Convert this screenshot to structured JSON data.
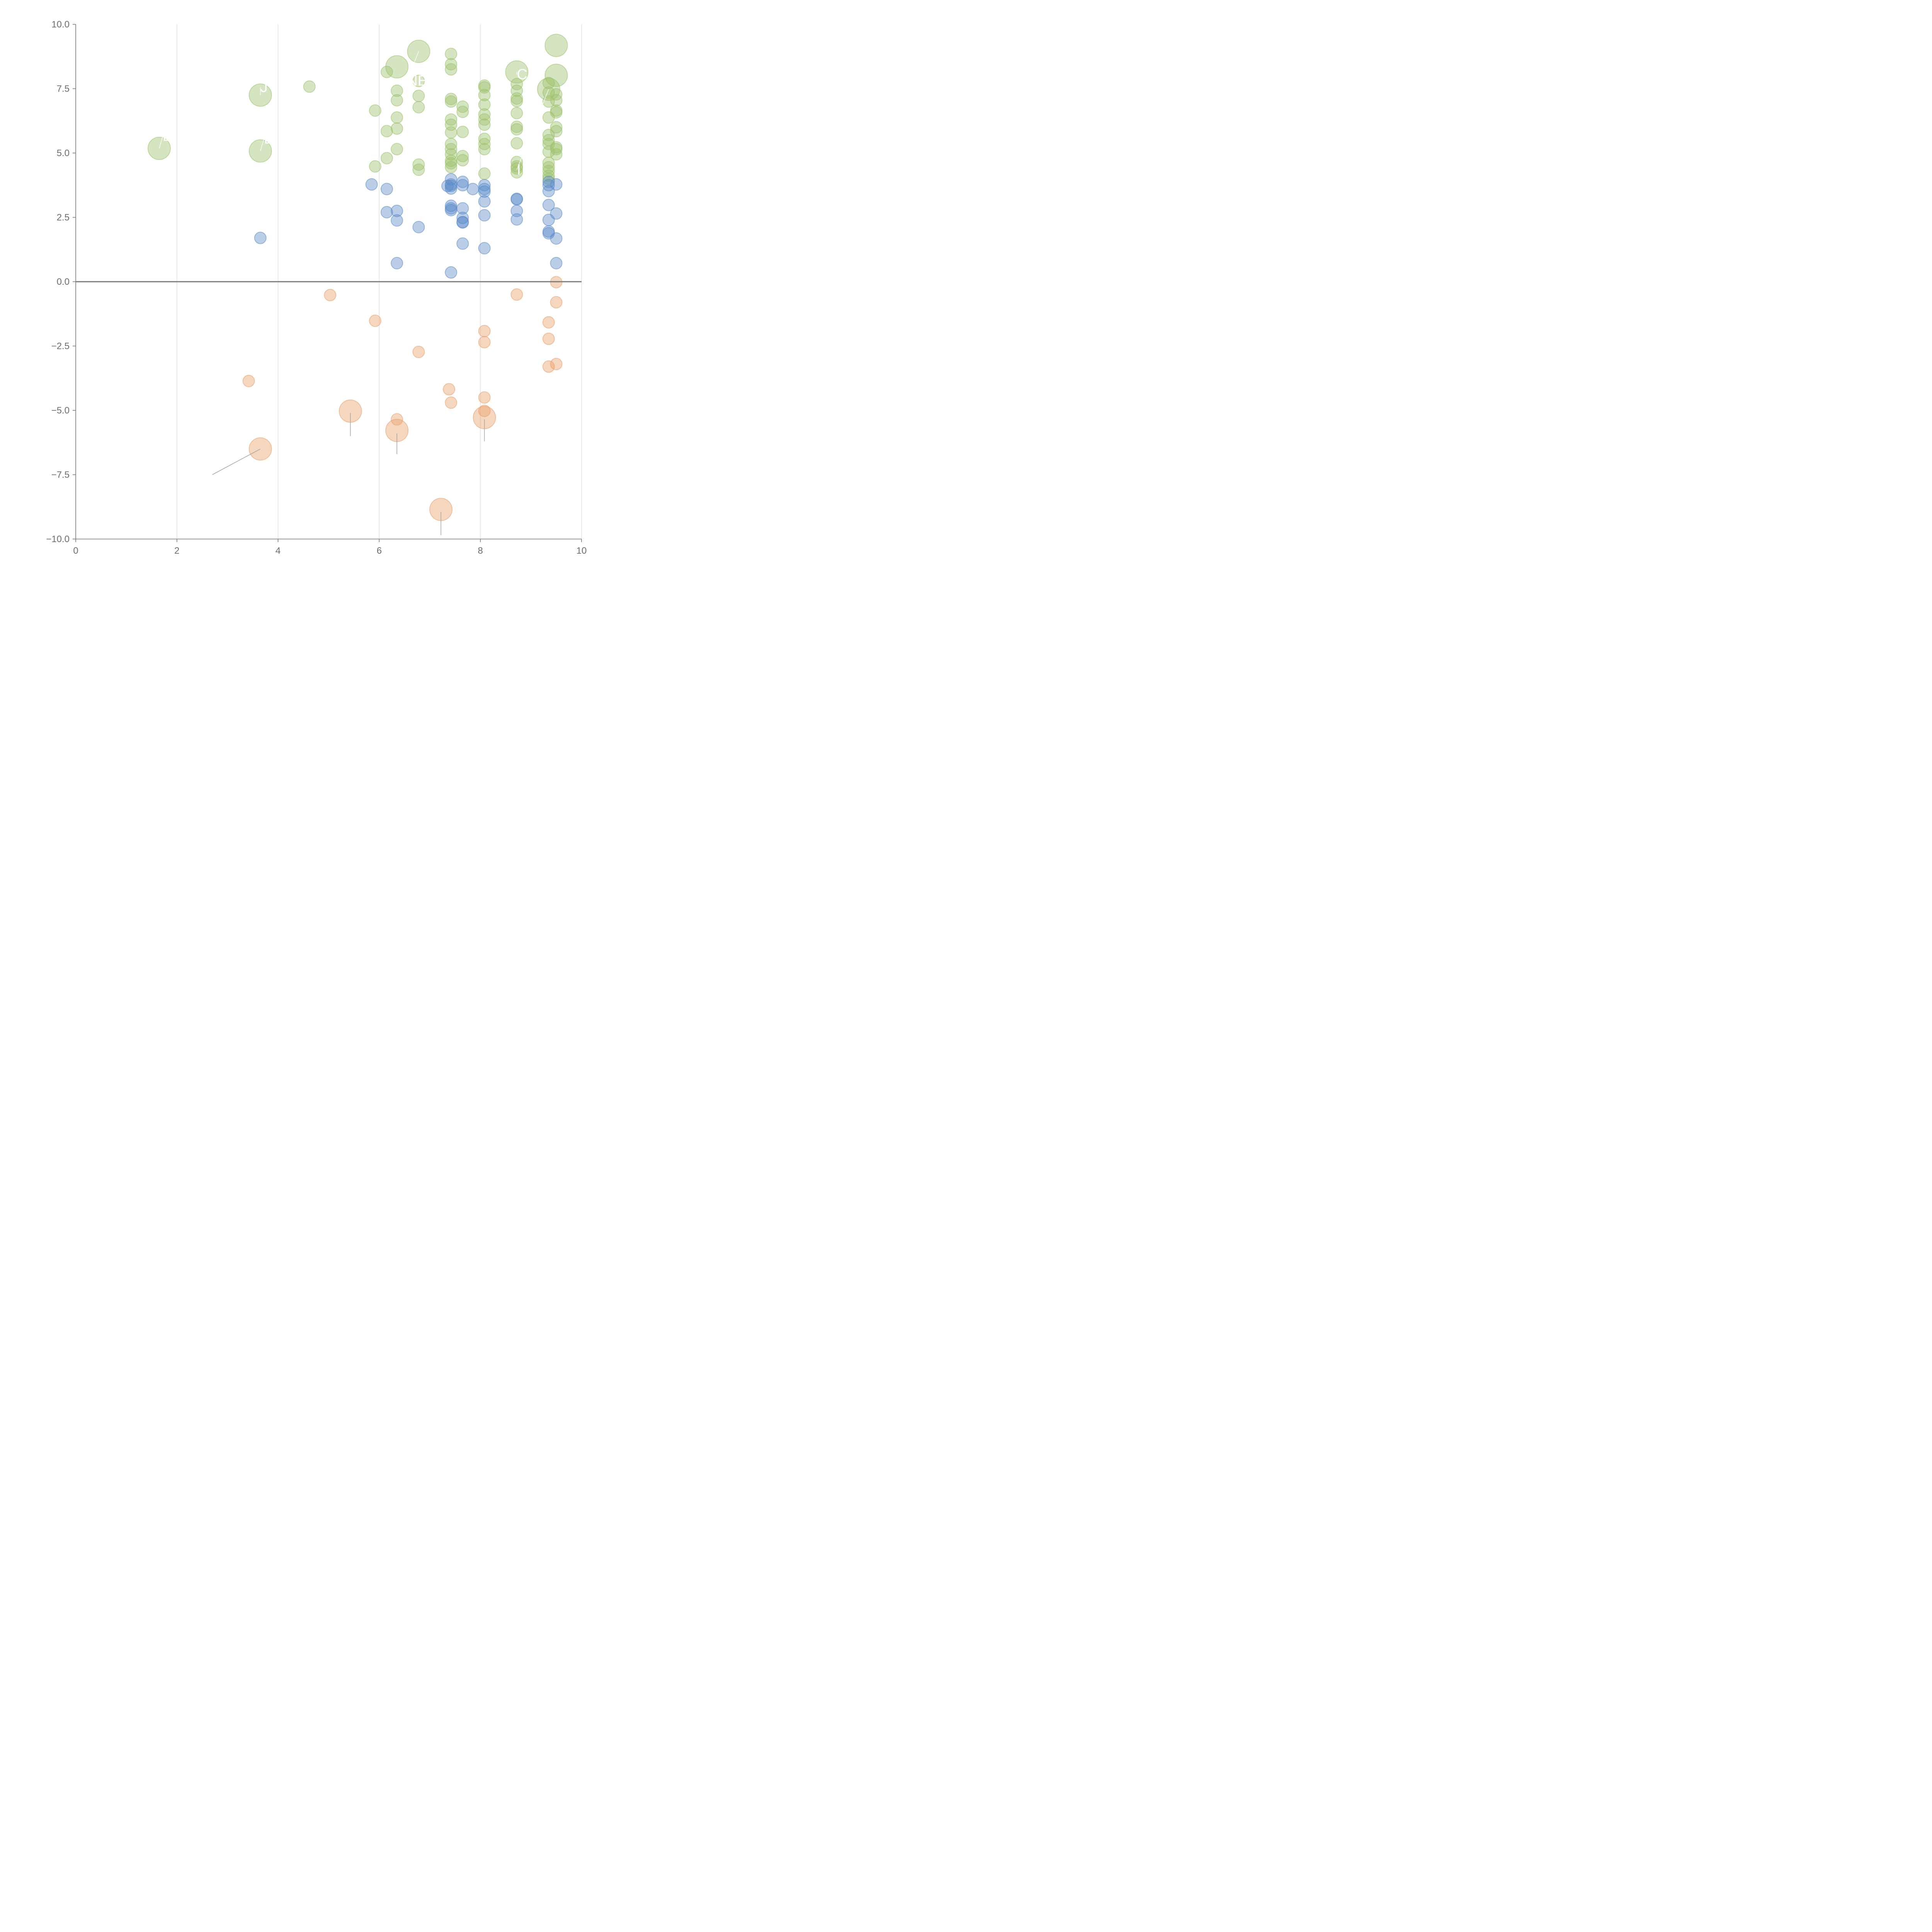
{
  "chart_data": {
    "type": "scatter",
    "title": "",
    "xlabel": "",
    "ylabel": "",
    "xlim": [
      0,
      10
    ],
    "ylim": [
      -10,
      10
    ],
    "x_ticks": [
      0,
      2,
      4,
      6,
      8,
      10
    ],
    "y_ticks": [
      10,
      7.5,
      5,
      2.5,
      0,
      -2.5,
      -5,
      -7.5,
      -10
    ],
    "x_tick_labels": [
      "0",
      "2",
      "4",
      "6",
      "8",
      "10"
    ],
    "y_tick_labels": [
      "10.0",
      "7.5",
      "5.0",
      "2.5",
      "0.0",
      "−2.5",
      "−5.0",
      "−7.5",
      "−10.0"
    ],
    "grid": "vertical gridlines at x ticks",
    "zero_line": true,
    "series": [
      {
        "name": "green",
        "color": "#9dc16b",
        "points": [
          [
            3.65,
            7.25,
            2
          ],
          [
            4.62,
            7.58,
            1
          ],
          [
            1.65,
            5.18,
            2
          ],
          [
            3.65,
            5.08,
            2
          ],
          [
            6.35,
            8.35,
            2
          ],
          [
            6.78,
            8.95,
            2
          ],
          [
            6.15,
            8.15,
            1
          ],
          [
            6.35,
            7.42,
            1
          ],
          [
            6.35,
            7.05,
            1
          ],
          [
            5.92,
            6.65,
            1
          ],
          [
            6.35,
            6.38,
            1
          ],
          [
            6.15,
            5.85,
            1
          ],
          [
            6.35,
            5.95,
            1
          ],
          [
            6.35,
            5.15,
            1
          ],
          [
            6.15,
            4.8,
            1
          ],
          [
            5.92,
            4.48,
            1
          ],
          [
            6.78,
            7.8,
            1
          ],
          [
            6.78,
            7.22,
            1
          ],
          [
            6.78,
            6.78,
            1
          ],
          [
            6.78,
            4.55,
            1
          ],
          [
            6.78,
            4.35,
            1
          ],
          [
            7.42,
            8.85,
            1
          ],
          [
            7.42,
            8.45,
            1
          ],
          [
            7.42,
            8.25,
            1
          ],
          [
            7.42,
            7.1,
            1
          ],
          [
            7.42,
            7.0,
            1
          ],
          [
            7.42,
            6.3,
            1
          ],
          [
            7.42,
            6.1,
            1
          ],
          [
            7.42,
            5.8,
            1
          ],
          [
            7.42,
            5.35,
            1
          ],
          [
            7.42,
            5.15,
            1
          ],
          [
            7.42,
            4.95,
            1
          ],
          [
            7.42,
            4.7,
            1
          ],
          [
            7.42,
            4.6,
            1
          ],
          [
            7.42,
            4.45,
            1
          ],
          [
            7.65,
            6.8,
            1
          ],
          [
            7.65,
            6.6,
            1
          ],
          [
            7.65,
            5.82,
            1
          ],
          [
            7.65,
            4.88,
            1
          ],
          [
            7.65,
            4.72,
            1
          ],
          [
            8.08,
            7.62,
            1
          ],
          [
            8.08,
            7.55,
            1
          ],
          [
            8.08,
            7.25,
            1
          ],
          [
            8.08,
            6.88,
            1
          ],
          [
            8.08,
            6.5,
            1
          ],
          [
            8.08,
            6.3,
            1
          ],
          [
            8.08,
            6.1,
            1
          ],
          [
            8.08,
            5.55,
            1
          ],
          [
            8.08,
            5.35,
            1
          ],
          [
            8.08,
            5.15,
            1
          ],
          [
            8.08,
            4.2,
            1
          ],
          [
            8.72,
            8.15,
            2
          ],
          [
            8.72,
            7.68,
            1
          ],
          [
            8.72,
            7.42,
            1
          ],
          [
            8.72,
            7.12,
            1
          ],
          [
            8.72,
            7.02,
            1
          ],
          [
            8.72,
            6.55,
            1
          ],
          [
            8.72,
            6.02,
            1
          ],
          [
            8.72,
            5.92,
            1
          ],
          [
            8.72,
            5.38,
            1
          ],
          [
            8.72,
            4.65,
            1
          ],
          [
            8.72,
            4.48,
            1
          ],
          [
            8.72,
            4.4,
            1
          ],
          [
            8.72,
            4.25,
            1
          ],
          [
            9.5,
            9.18,
            2
          ],
          [
            9.5,
            8.02,
            2
          ],
          [
            9.35,
            7.48,
            2
          ],
          [
            9.35,
            7.72,
            1
          ],
          [
            9.35,
            7.35,
            1
          ],
          [
            9.35,
            7.0,
            1
          ],
          [
            9.35,
            6.38,
            1
          ],
          [
            9.35,
            5.7,
            1
          ],
          [
            9.35,
            5.5,
            1
          ],
          [
            9.35,
            5.35,
            1
          ],
          [
            9.35,
            5.05,
            1
          ],
          [
            9.35,
            4.62,
            1
          ],
          [
            9.35,
            4.45,
            1
          ],
          [
            9.35,
            4.3,
            1
          ],
          [
            9.35,
            4.12,
            1
          ],
          [
            9.35,
            4.0,
            1
          ],
          [
            9.5,
            7.28,
            1
          ],
          [
            9.5,
            7.05,
            1
          ],
          [
            9.5,
            6.65,
            1
          ],
          [
            9.5,
            6.58,
            1
          ],
          [
            9.5,
            6.0,
            1
          ],
          [
            9.5,
            5.85,
            1
          ],
          [
            9.5,
            5.22,
            1
          ],
          [
            9.5,
            5.15,
            1
          ],
          [
            9.5,
            4.95,
            1
          ]
        ]
      },
      {
        "name": "blue",
        "color": "#5b8ac7",
        "points": [
          [
            3.65,
            1.7,
            1
          ],
          [
            5.85,
            3.78,
            1
          ],
          [
            6.15,
            3.6,
            1
          ],
          [
            6.15,
            2.7,
            1
          ],
          [
            6.35,
            2.75,
            1
          ],
          [
            6.35,
            2.38,
            1
          ],
          [
            6.78,
            2.12,
            1
          ],
          [
            6.35,
            0.72,
            1
          ],
          [
            7.35,
            3.72,
            1
          ],
          [
            7.42,
            3.98,
            1
          ],
          [
            7.42,
            3.78,
            1
          ],
          [
            7.42,
            3.72,
            1
          ],
          [
            7.42,
            3.62,
            1
          ],
          [
            7.42,
            2.95,
            1
          ],
          [
            7.42,
            2.85,
            1
          ],
          [
            7.42,
            2.78,
            1
          ],
          [
            7.42,
            0.36,
            1
          ],
          [
            7.65,
            3.88,
            1
          ],
          [
            7.65,
            3.75,
            1
          ],
          [
            7.65,
            2.85,
            1
          ],
          [
            7.65,
            2.48,
            1
          ],
          [
            7.65,
            2.32,
            1
          ],
          [
            7.65,
            2.3,
            1
          ],
          [
            7.65,
            1.48,
            1
          ],
          [
            7.85,
            3.6,
            1
          ],
          [
            8.08,
            3.75,
            1
          ],
          [
            8.08,
            3.6,
            1
          ],
          [
            8.08,
            3.5,
            1
          ],
          [
            8.08,
            3.12,
            1
          ],
          [
            8.08,
            2.58,
            1
          ],
          [
            8.08,
            1.3,
            1
          ],
          [
            8.72,
            3.22,
            1
          ],
          [
            8.72,
            3.2,
            1
          ],
          [
            8.72,
            2.75,
            1
          ],
          [
            8.72,
            2.42,
            1
          ],
          [
            9.35,
            3.88,
            1
          ],
          [
            9.35,
            3.75,
            1
          ],
          [
            9.35,
            3.52,
            1
          ],
          [
            9.35,
            2.98,
            1
          ],
          [
            9.35,
            2.4,
            1
          ],
          [
            9.35,
            1.95,
            1
          ],
          [
            9.35,
            1.88,
            1
          ],
          [
            9.5,
            3.78,
            1
          ],
          [
            9.5,
            2.65,
            1
          ],
          [
            9.5,
            1.68,
            1
          ],
          [
            9.5,
            0.72,
            1
          ]
        ]
      },
      {
        "name": "orange",
        "color": "#e89f6a",
        "points": [
          [
            5.03,
            -0.52,
            1
          ],
          [
            5.92,
            -1.52,
            1
          ],
          [
            3.42,
            -3.86,
            1
          ],
          [
            6.78,
            -2.73,
            1
          ],
          [
            5.43,
            -5.03,
            2
          ],
          [
            6.35,
            -5.78,
            2
          ],
          [
            6.35,
            -5.35,
            1
          ],
          [
            3.65,
            -6.5,
            2
          ],
          [
            7.38,
            -4.18,
            1
          ],
          [
            7.42,
            -4.7,
            1
          ],
          [
            7.22,
            -8.85,
            2
          ],
          [
            8.08,
            -1.92,
            1
          ],
          [
            8.08,
            -2.35,
            1
          ],
          [
            8.08,
            -4.5,
            1
          ],
          [
            8.08,
            -5.02,
            1
          ],
          [
            8.08,
            -5.28,
            2
          ],
          [
            8.72,
            -0.5,
            1
          ],
          [
            9.35,
            -1.58,
            1
          ],
          [
            9.35,
            -2.22,
            1
          ],
          [
            9.35,
            -3.3,
            1
          ],
          [
            9.5,
            -0.02,
            1
          ],
          [
            9.5,
            -0.8,
            1
          ],
          [
            9.5,
            -3.2,
            1
          ]
        ]
      }
    ],
    "annotations": [
      {
        "text": "J",
        "x": 3.65,
        "y": 7.25,
        "tx": 3.65,
        "ty": 7.55
      },
      {
        "text": "E",
        "x": 1.65,
        "y": 5.18,
        "tx": 1.72,
        "ty": 5.65
      },
      {
        "text": "E",
        "x": 3.65,
        "y": 5.08,
        "tx": 3.72,
        "ty": 5.55
      },
      {
        "text": "NEA",
        "x": 6.78,
        "y": 8.95,
        "tx": 6.55,
        "ty": 7.8
      },
      {
        "text": "CH",
        "x": 8.72,
        "y": 8.15,
        "tx": 8.72,
        "ty": 8.05
      },
      {
        "text": "I",
        "x": 9.35,
        "y": 7.48,
        "tx": 8.72,
        "ty": 4.35
      }
    ]
  }
}
